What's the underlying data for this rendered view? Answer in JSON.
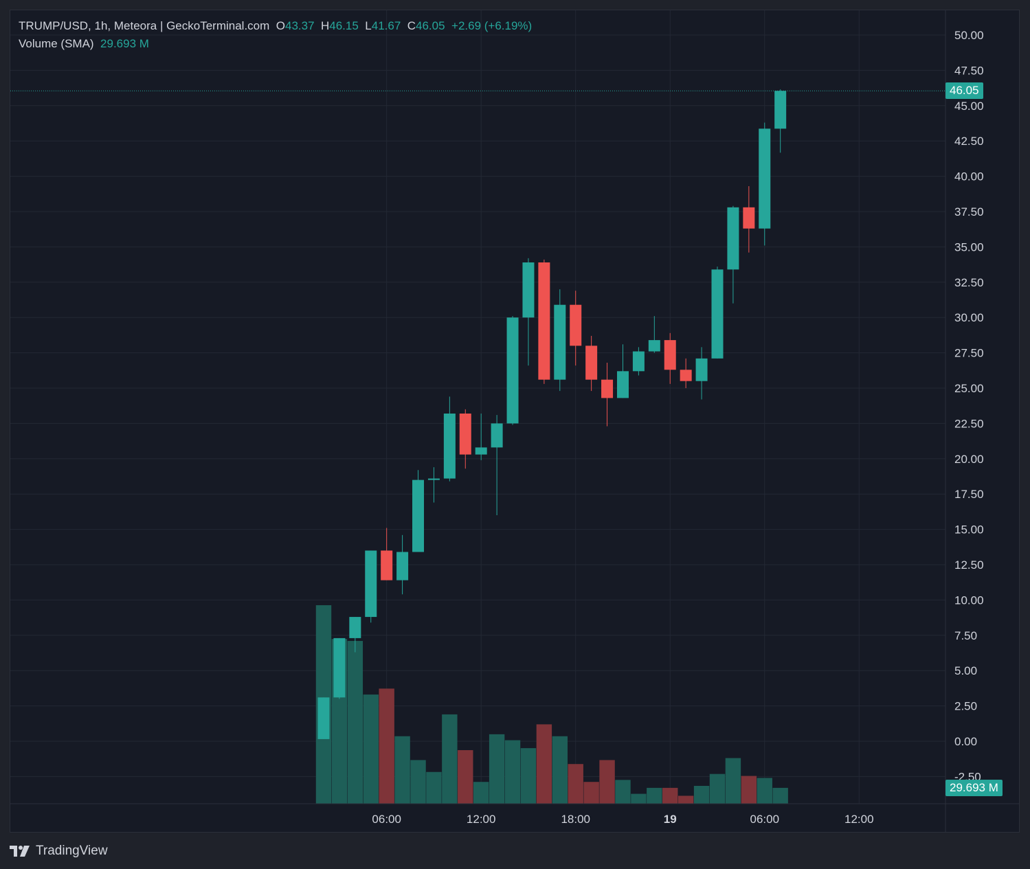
{
  "header": {
    "symbol_line": "TRUMP/USD, 1h, Meteora | GeckoTerminal.com",
    "o_label": "O",
    "o_value": "43.37",
    "h_label": "H",
    "h_value": "46.15",
    "l_label": "L",
    "l_value": "41.67",
    "c_label": "C",
    "c_value": "46.05",
    "change": "+2.69 (+6.19%)",
    "volume_label": "Volume (SMA)",
    "volume_value": "29.693 M"
  },
  "last_price_tag": "46.05",
  "last_volume_tag": "29.693 M",
  "branding": {
    "name": "TradingView"
  },
  "colors": {
    "up": "#26a69a",
    "down": "#ef5350",
    "vol_up": "#1e5f58",
    "vol_down": "#7f3439",
    "bg": "#161a25",
    "grid": "#232834",
    "text": "#d1d4dc"
  },
  "chart_data": {
    "type": "candlestick",
    "interval": "1h",
    "y_ticks": [
      "50.00",
      "47.50",
      "45.00",
      "42.50",
      "40.00",
      "37.50",
      "35.00",
      "32.50",
      "30.00",
      "27.50",
      "25.00",
      "22.50",
      "20.00",
      "17.50",
      "15.00",
      "12.50",
      "10.00",
      "7.50",
      "5.00",
      "2.50",
      "0.00",
      "-2.50"
    ],
    "x_ticks": [
      {
        "label": "06:00",
        "index": 4,
        "bold": false
      },
      {
        "label": "12:00",
        "index": 10,
        "bold": false
      },
      {
        "label": "18:00",
        "index": 16,
        "bold": false
      },
      {
        "label": "19",
        "index": 22,
        "bold": true
      },
      {
        "label": "06:00",
        "index": 28,
        "bold": false
      },
      {
        "label": "12:00",
        "index": 34,
        "bold": false
      }
    ],
    "grid": true,
    "candles": [
      {
        "o": 0.15,
        "h": 3.1,
        "l": 0.15,
        "c": 3.1
      },
      {
        "o": 3.1,
        "h": 7.3,
        "l": 3.0,
        "c": 7.3
      },
      {
        "o": 7.3,
        "h": 8.8,
        "l": 6.3,
        "c": 8.8
      },
      {
        "o": 8.8,
        "h": 13.5,
        "l": 8.4,
        "c": 13.5
      },
      {
        "o": 13.5,
        "h": 15.1,
        "l": 11.4,
        "c": 11.4
      },
      {
        "o": 11.4,
        "h": 14.6,
        "l": 10.4,
        "c": 13.4
      },
      {
        "o": 13.4,
        "h": 19.2,
        "l": 13.4,
        "c": 18.5
      },
      {
        "o": 18.5,
        "h": 19.4,
        "l": 16.9,
        "c": 18.6
      },
      {
        "o": 18.6,
        "h": 24.4,
        "l": 18.4,
        "c": 23.2
      },
      {
        "o": 23.2,
        "h": 23.5,
        "l": 19.3,
        "c": 20.3
      },
      {
        "o": 20.3,
        "h": 23.2,
        "l": 19.9,
        "c": 20.8
      },
      {
        "o": 20.8,
        "h": 23.1,
        "l": 16.0,
        "c": 22.5
      },
      {
        "o": 22.5,
        "h": 30.1,
        "l": 22.4,
        "c": 30.0
      },
      {
        "o": 30.0,
        "h": 34.2,
        "l": 26.6,
        "c": 33.9
      },
      {
        "o": 33.9,
        "h": 34.1,
        "l": 25.3,
        "c": 25.6
      },
      {
        "o": 25.6,
        "h": 32.0,
        "l": 24.8,
        "c": 30.9
      },
      {
        "o": 30.9,
        "h": 31.9,
        "l": 26.6,
        "c": 28.0
      },
      {
        "o": 28.0,
        "h": 28.7,
        "l": 24.8,
        "c": 25.6
      },
      {
        "o": 25.6,
        "h": 26.8,
        "l": 22.3,
        "c": 24.3
      },
      {
        "o": 24.3,
        "h": 28.1,
        "l": 24.3,
        "c": 26.2
      },
      {
        "o": 26.2,
        "h": 27.9,
        "l": 25.9,
        "c": 27.6
      },
      {
        "o": 27.6,
        "h": 30.1,
        "l": 27.5,
        "c": 28.4
      },
      {
        "o": 28.4,
        "h": 28.9,
        "l": 25.3,
        "c": 26.3
      },
      {
        "o": 26.3,
        "h": 27.1,
        "l": 25.0,
        "c": 25.5
      },
      {
        "o": 25.5,
        "h": 27.9,
        "l": 24.2,
        "c": 27.1
      },
      {
        "o": 27.1,
        "h": 33.6,
        "l": 27.1,
        "c": 33.4
      },
      {
        "o": 33.4,
        "h": 37.9,
        "l": 31.0,
        "c": 37.8
      },
      {
        "o": 37.8,
        "h": 39.3,
        "l": 34.6,
        "c": 36.3
      },
      {
        "o": 36.3,
        "h": 43.8,
        "l": 35.1,
        "c": 43.37
      },
      {
        "o": 43.37,
        "h": 46.15,
        "l": 41.67,
        "c": 46.05
      }
    ],
    "volume_bars": [
      {
        "rel": 1.0,
        "dir": "up"
      },
      {
        "rel": 0.83,
        "dir": "up"
      },
      {
        "rel": 0.82,
        "dir": "up"
      },
      {
        "rel": 0.55,
        "dir": "up"
      },
      {
        "rel": 0.58,
        "dir": "down"
      },
      {
        "rel": 0.34,
        "dir": "up"
      },
      {
        "rel": 0.22,
        "dir": "up"
      },
      {
        "rel": 0.16,
        "dir": "up"
      },
      {
        "rel": 0.45,
        "dir": "up"
      },
      {
        "rel": 0.27,
        "dir": "down"
      },
      {
        "rel": 0.11,
        "dir": "up"
      },
      {
        "rel": 0.35,
        "dir": "up"
      },
      {
        "rel": 0.32,
        "dir": "up"
      },
      {
        "rel": 0.28,
        "dir": "up"
      },
      {
        "rel": 0.4,
        "dir": "down"
      },
      {
        "rel": 0.34,
        "dir": "up"
      },
      {
        "rel": 0.2,
        "dir": "down"
      },
      {
        "rel": 0.11,
        "dir": "down"
      },
      {
        "rel": 0.22,
        "dir": "down"
      },
      {
        "rel": 0.12,
        "dir": "up"
      },
      {
        "rel": 0.05,
        "dir": "up"
      },
      {
        "rel": 0.08,
        "dir": "up"
      },
      {
        "rel": 0.08,
        "dir": "down"
      },
      {
        "rel": 0.04,
        "dir": "down"
      },
      {
        "rel": 0.09,
        "dir": "up"
      },
      {
        "rel": 0.15,
        "dir": "up"
      },
      {
        "rel": 0.23,
        "dir": "up"
      },
      {
        "rel": 0.14,
        "dir": "down"
      },
      {
        "rel": 0.13,
        "dir": "up"
      },
      {
        "rel": 0.08,
        "dir": "up"
      }
    ]
  }
}
